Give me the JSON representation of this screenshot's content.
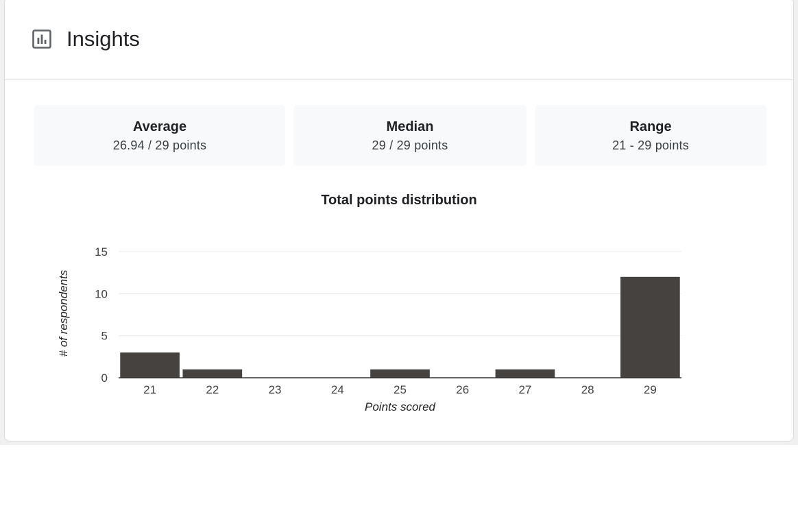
{
  "header": {
    "title": "Insights",
    "icon": "bar-chart-icon"
  },
  "stats": [
    {
      "label": "Average",
      "value": "26.94 / 29 points"
    },
    {
      "label": "Median",
      "value": "29 / 29 points"
    },
    {
      "label": "Range",
      "value": "21 - 29 points"
    }
  ],
  "chart_data": {
    "type": "bar",
    "title": "Total points distribution",
    "xlabel": "Points scored",
    "ylabel": "# of respondents",
    "categories": [
      "21",
      "22",
      "23",
      "24",
      "25",
      "26",
      "27",
      "28",
      "29"
    ],
    "values": [
      3,
      1,
      0,
      0,
      1,
      0,
      1,
      0,
      12
    ],
    "ylim": [
      0,
      15
    ],
    "yticks": [
      0,
      5,
      10,
      15
    ],
    "grid": true,
    "bar_color": "#454240"
  }
}
